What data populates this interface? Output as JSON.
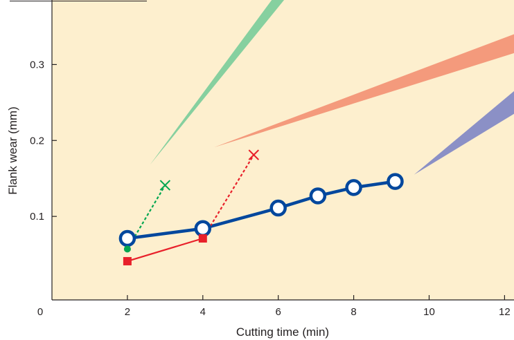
{
  "chart_data": {
    "type": "line",
    "xlabel": "Cutting time (min)",
    "ylabel": "Flank wear (mm)",
    "xlim": [
      0,
      12.25
    ],
    "ylim": [
      -0.01,
      0.385
    ],
    "x_ticks": [
      0,
      2,
      4,
      6,
      8,
      10,
      12
    ],
    "x_tick_labels": [
      "0",
      "2",
      "4",
      "6",
      "8",
      "10",
      "12"
    ],
    "y_ticks": [
      0.1,
      0.2,
      0.3
    ],
    "y_tick_labels": [
      "0.1",
      "0.2",
      "0.3"
    ],
    "plot_background": "#fdefce",
    "grid": false,
    "legend": "none",
    "series": [
      {
        "color": "#00479d",
        "marker": "open-circle",
        "line": "solid",
        "x": [
          2,
          4,
          6,
          7.05,
          8,
          9.1
        ],
        "y": [
          0.071,
          0.084,
          0.111,
          0.127,
          0.138,
          0.146
        ]
      },
      {
        "color": "#e8202a",
        "marker": "square",
        "line": "solid",
        "x": [
          2,
          4
        ],
        "y": [
          0.041,
          0.071
        ]
      },
      {
        "color": "#e8202a",
        "marker": "none",
        "line": "dashed",
        "x": [
          4,
          5.35
        ],
        "y": [
          0.071,
          0.181
        ]
      },
      {
        "color": "#e8202a",
        "marker": "x",
        "line": "none",
        "x": [
          5.35
        ],
        "y": [
          0.181
        ]
      },
      {
        "color": "#00a650",
        "marker": "dot",
        "line": "none",
        "x": [
          2
        ],
        "y": [
          0.057
        ]
      },
      {
        "color": "#00a650",
        "marker": "none",
        "line": "dashed",
        "x": [
          2,
          3
        ],
        "y": [
          0.057,
          0.141
        ]
      },
      {
        "color": "#00a650",
        "marker": "x",
        "line": "none",
        "x": [
          3
        ],
        "y": [
          0.141
        ]
      }
    ],
    "trend_bands": [
      {
        "color": "#86d09f",
        "start": [
          2.6,
          0.168
        ],
        "end_upper": [
          6.05,
          0.4
        ],
        "end_lower": [
          6.4,
          0.4
        ]
      },
      {
        "color": "#f49a7c",
        "start": [
          4.3,
          0.191
        ],
        "end_upper": [
          12.25,
          0.34
        ],
        "end_lower": [
          12.25,
          0.315
        ]
      },
      {
        "color": "#8b90c6",
        "start": [
          9.6,
          0.155
        ],
        "end_upper": [
          12.25,
          0.265
        ],
        "end_lower": [
          12.25,
          0.235
        ]
      }
    ]
  }
}
